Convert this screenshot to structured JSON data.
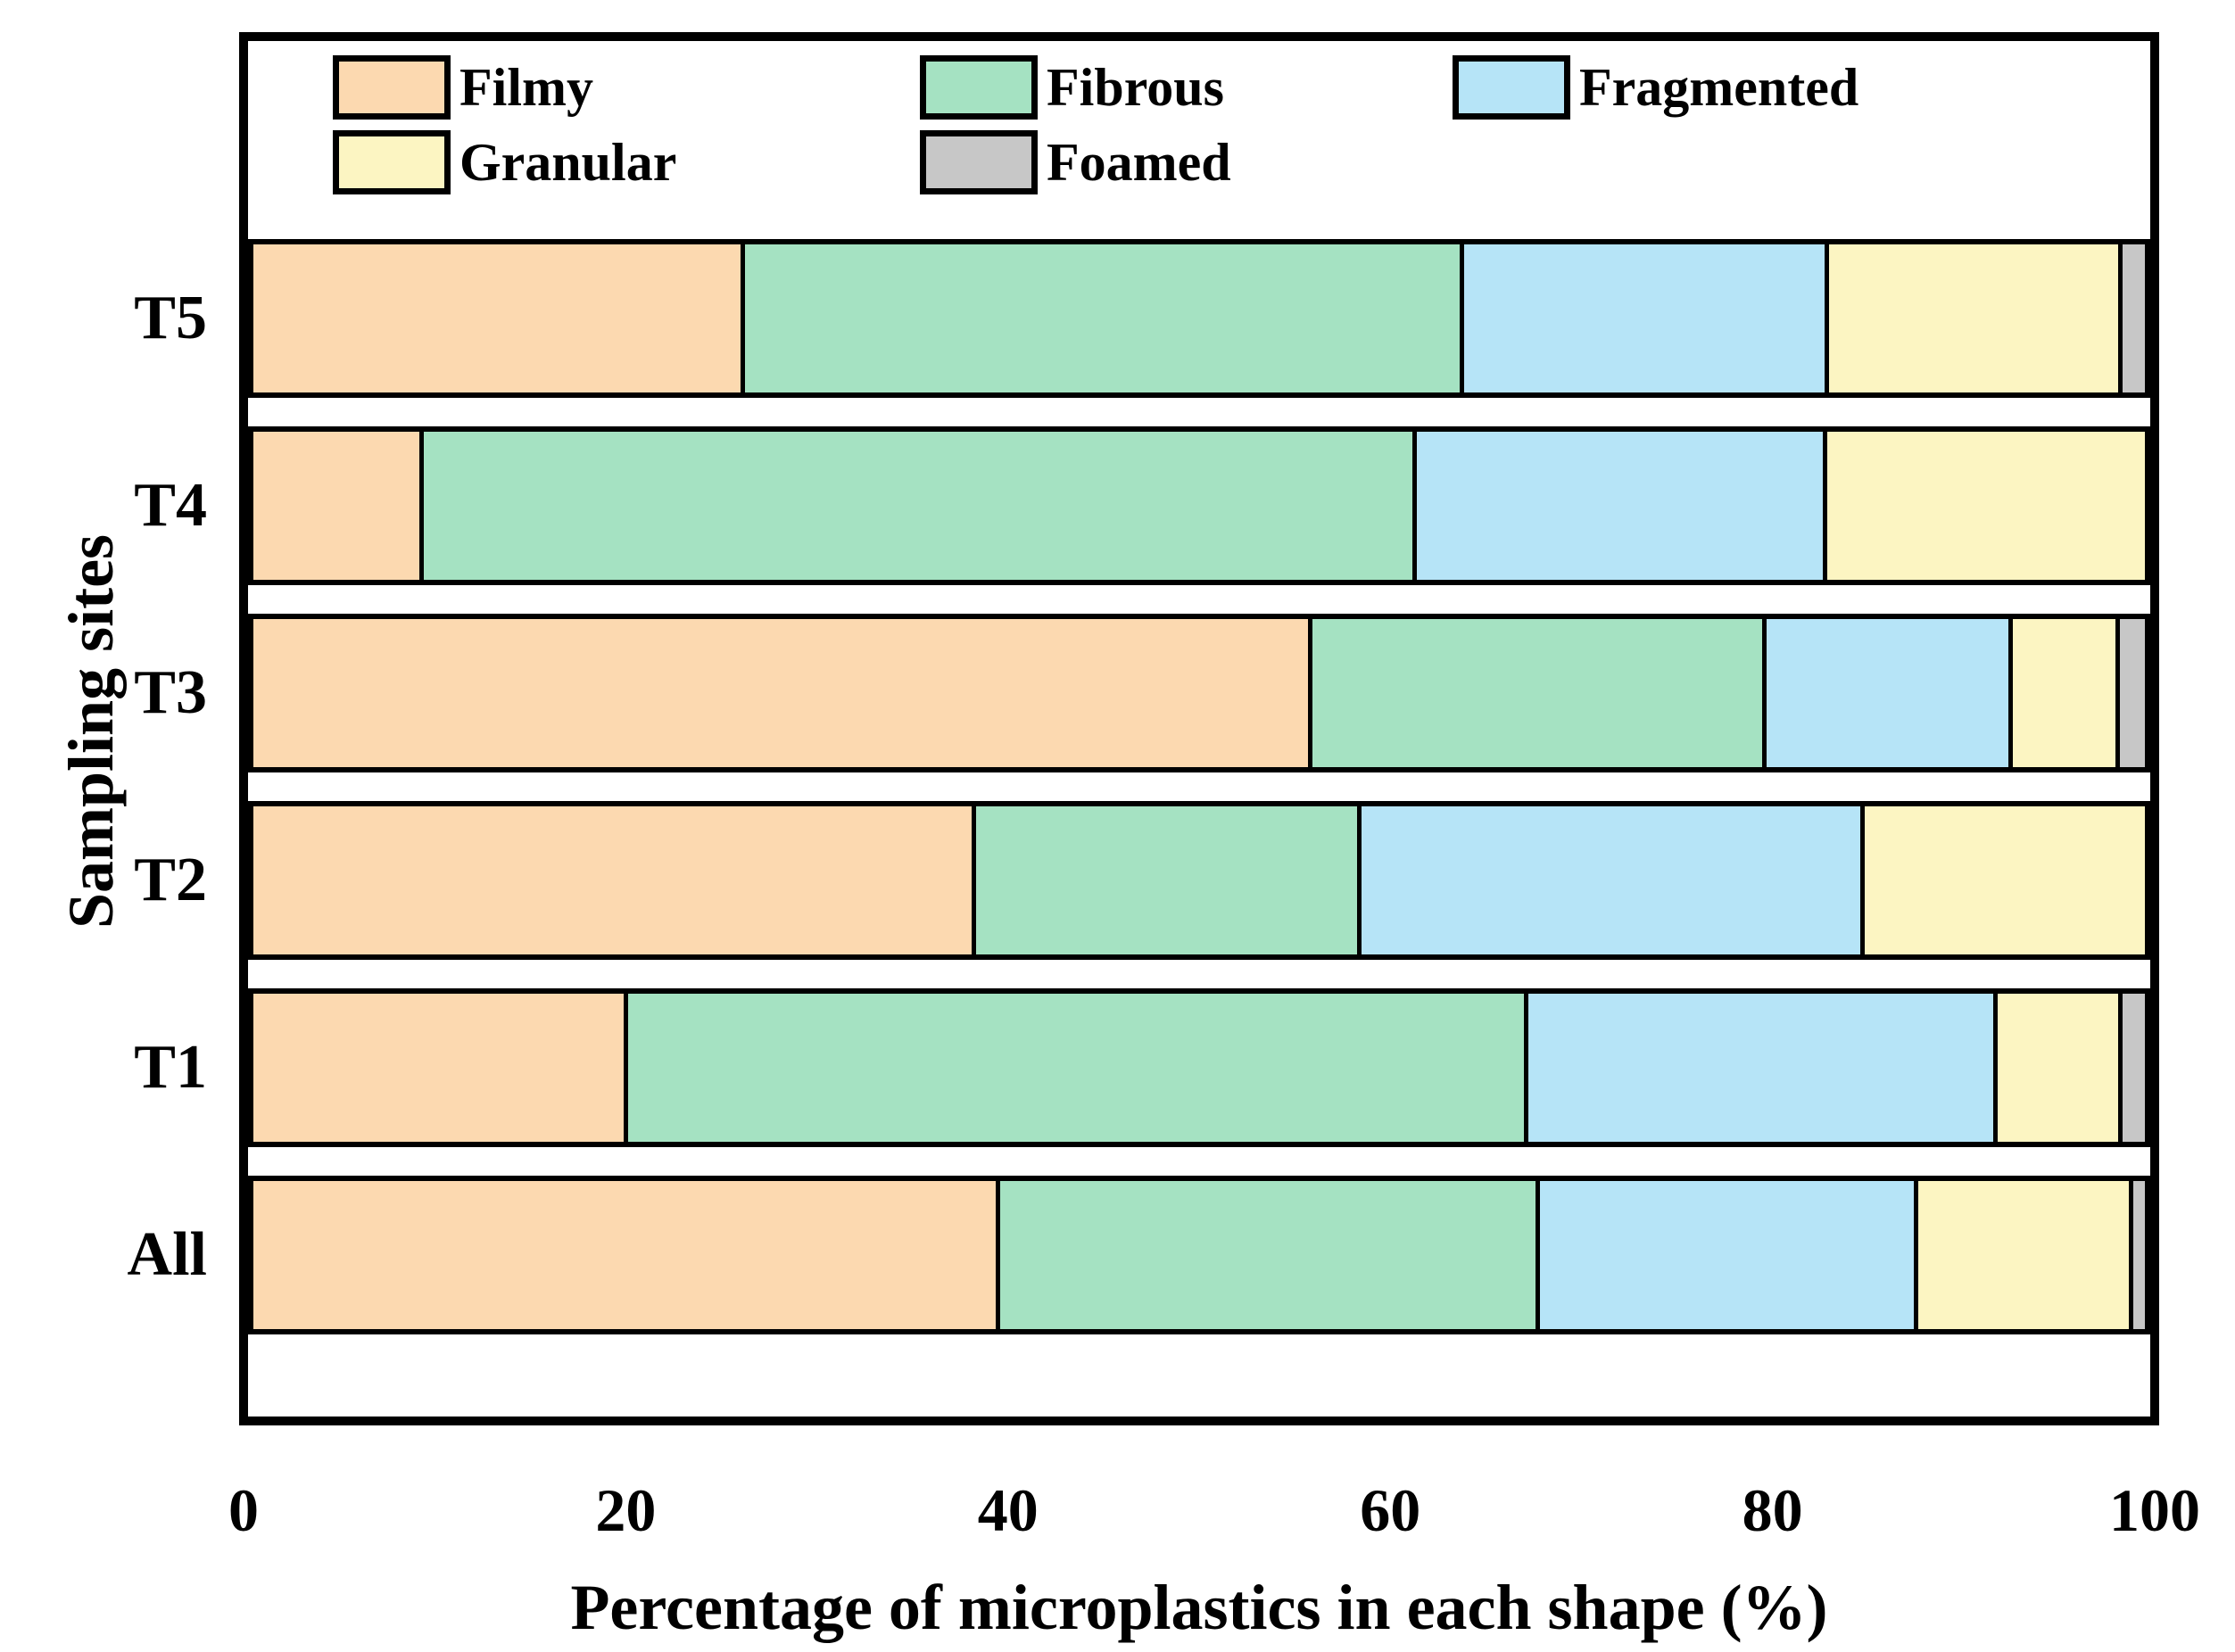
{
  "chart_data": {
    "type": "bar",
    "subtype": "horizontal-stacked",
    "title": "",
    "xlabel": "Percentage of microplastics in each shape (%)",
    "ylabel": "Sampling sites",
    "categories": [
      "T5",
      "T4",
      "T3",
      "T2",
      "T1",
      "All"
    ],
    "x_ticks": [
      "0",
      "20",
      "40",
      "60",
      "80",
      "100"
    ],
    "xlim": [
      0,
      100
    ],
    "grid": false,
    "legend_position": "top-inside",
    "legend_labels": [
      "Filmy",
      "Fibrous",
      "Fragmented",
      "Granular",
      "Foamed"
    ],
    "series": [
      {
        "name": "Filmy",
        "color": "#FCD9B0",
        "values": [
          26.0,
          9.0,
          56.0,
          38.2,
          19.8,
          39.5
        ]
      },
      {
        "name": "Fibrous",
        "color": "#A5E2C2",
        "values": [
          38.0,
          52.5,
          24.0,
          20.4,
          47.6,
          28.5
        ]
      },
      {
        "name": "Fragmented",
        "color": "#B6E4F7",
        "values": [
          19.3,
          21.7,
          13.0,
          26.6,
          24.8,
          20.0
        ]
      },
      {
        "name": "Granular",
        "color": "#FCF5C2",
        "values": [
          15.5,
          16.8,
          5.7,
          14.8,
          6.6,
          11.4
        ]
      },
      {
        "name": "Foamed",
        "color": "#C7C7C7",
        "values": [
          1.2,
          0.0,
          1.3,
          0.0,
          1.2,
          0.6
        ]
      }
    ]
  },
  "colors": {
    "axis_border": "#000000",
    "background": "#ffffff"
  }
}
